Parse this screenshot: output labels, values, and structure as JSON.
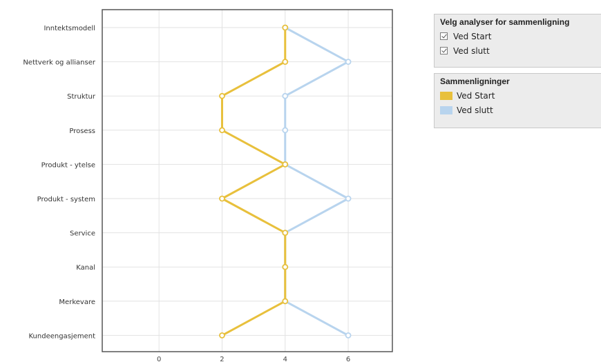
{
  "chart_data": {
    "type": "line",
    "orientation": "horizontal",
    "categories": [
      "Inntektsmodell",
      "Nettverk og allianser",
      "Struktur",
      "Prosess",
      "Produkt - ytelse",
      "Produkt - system",
      "Service",
      "Kanal",
      "Merkevare",
      "Kundeengasjement"
    ],
    "series": [
      {
        "name": "Ved Start",
        "color": "#e8c03c",
        "values": [
          4,
          4,
          2,
          2,
          4,
          2,
          4,
          4,
          4,
          2
        ]
      },
      {
        "name": "Ved slutt",
        "color": "#b8d4ee",
        "values": [
          4,
          6,
          4,
          4,
          4,
          6,
          4,
          4,
          4,
          6
        ]
      }
    ],
    "x_ticks": [
      "0",
      "2",
      "4",
      "6"
    ],
    "xlim": [
      -1.8,
      7.4
    ],
    "grid": true
  },
  "panel_select": {
    "title": "Velg analyser for sammenligning",
    "items": [
      {
        "label": "Ved Start",
        "checked": true
      },
      {
        "label": "Ved slutt",
        "checked": true
      }
    ]
  },
  "panel_legend": {
    "title": "Sammenligninger",
    "items": [
      {
        "label": "Ved Start",
        "color": "#e8c03c"
      },
      {
        "label": "Ved slutt",
        "color": "#b8d4ee"
      }
    ]
  }
}
